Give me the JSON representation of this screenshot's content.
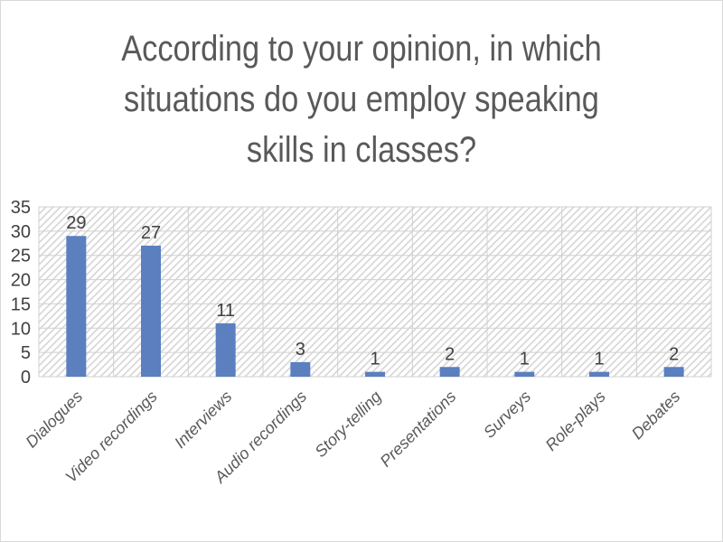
{
  "chart_data": {
    "type": "bar",
    "title": "According to your opinion, in which situations do you employ speaking skills in classes?",
    "categories": [
      "Dialogues",
      "Video recordings",
      "Interviews",
      "Audio recordings",
      "Story-telling",
      "Presentations",
      "Surveys",
      "Role-plays",
      "Debates"
    ],
    "values": [
      29,
      27,
      11,
      3,
      1,
      2,
      1,
      1,
      2
    ],
    "ylim": [
      0,
      35
    ],
    "yticks": [
      0,
      5,
      10,
      15,
      20,
      25,
      30,
      35
    ],
    "grid": true,
    "legend": "none",
    "xlabel": "",
    "ylabel": "",
    "colors": {
      "bar": "#5b7fbf",
      "grid": "#d0d0d0",
      "hatch": "#d6d6d6",
      "text": "#404040"
    }
  }
}
